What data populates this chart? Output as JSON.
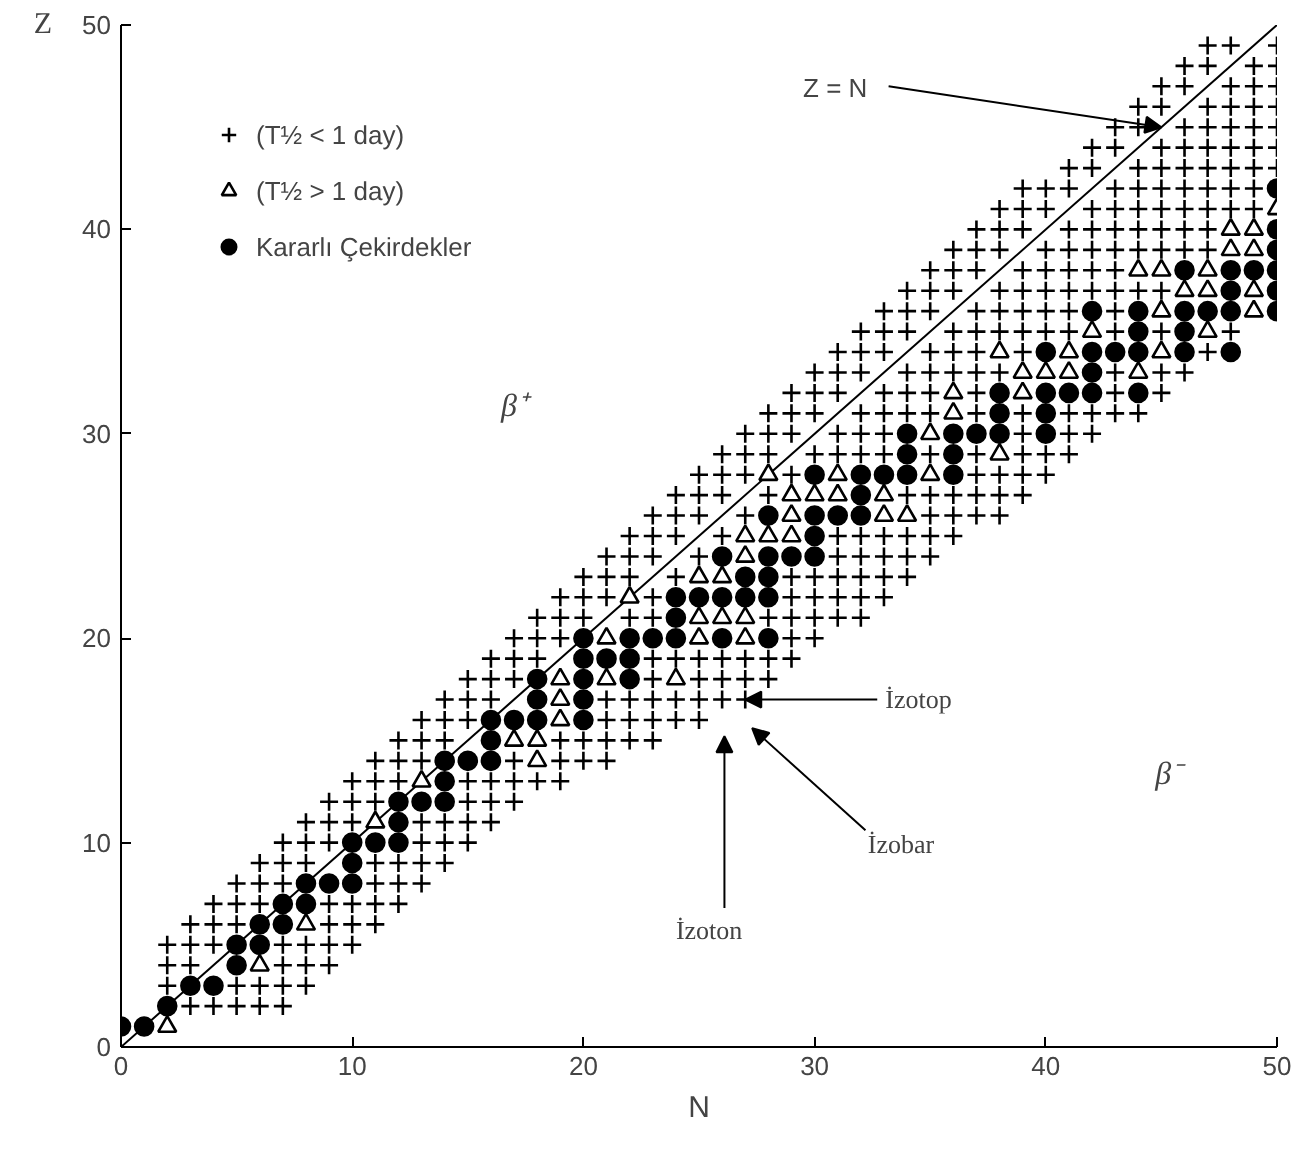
{
  "chart_data": {
    "type": "scatter",
    "xlabel": "N",
    "ylabel": "Z",
    "xlim": [
      0,
      50
    ],
    "ylim": [
      0,
      50
    ],
    "xticks": [
      0,
      10,
      20,
      30,
      40,
      50
    ],
    "yticks": [
      0,
      10,
      20,
      30,
      40,
      50
    ],
    "grid": false,
    "legend": "top left",
    "annotations": [
      {
        "text": "Z = N",
        "x": 45,
        "y": 45
      },
      "β⁺",
      "β⁻",
      {
        "text": "İzotop",
        "x": 27,
        "y": 17
      },
      "İzobar",
      "İzoton"
    ],
    "series": [
      {
        "type": "line",
        "color": "#000000",
        "x": [
          0,
          50
        ],
        "values": [
          0,
          50
        ]
      },
      {
        "marker": "cross",
        "name": "(T½ < 1 day)",
        "color": "#000000",
        "x": [
          3,
          4,
          5,
          6,
          7
        ],
        "values": [
          2,
          2,
          2,
          2,
          2
        ]
      },
      {
        "marker": "cross",
        "color": "#000000",
        "x": [
          2,
          5,
          6,
          7,
          8
        ],
        "values": [
          3,
          3,
          3,
          3,
          3
        ]
      },
      {
        "marker": "cross",
        "color": "#000000",
        "x": [
          2,
          3,
          7,
          8,
          9
        ],
        "values": [
          4,
          4,
          4,
          4,
          4
        ]
      },
      {
        "marker": "cross",
        "color": "#000000",
        "x": [
          2,
          3,
          4,
          7,
          8,
          9,
          10
        ],
        "values": [
          5,
          5,
          5,
          5,
          5,
          5,
          5
        ]
      },
      {
        "marker": "cross",
        "color": "#000000",
        "x": [
          3,
          4,
          5,
          9,
          10,
          11
        ],
        "values": [
          6,
          6,
          6,
          6,
          6,
          6
        ]
      },
      {
        "marker": "cross",
        "color": "#000000",
        "x": [
          4,
          5,
          6,
          9,
          10,
          11,
          12
        ],
        "values": [
          7,
          7,
          7,
          7,
          7,
          7,
          7
        ]
      },
      {
        "marker": "cross",
        "color": "#000000",
        "x": [
          5,
          6,
          7,
          11,
          12,
          13
        ],
        "values": [
          8,
          8,
          8,
          8,
          8,
          8
        ]
      },
      {
        "marker": "cross",
        "color": "#000000",
        "x": [
          6,
          7,
          8,
          11,
          12,
          13,
          14
        ],
        "values": [
          9,
          9,
          9,
          9,
          9,
          9,
          9
        ]
      },
      {
        "marker": "cross",
        "color": "#000000",
        "x": [
          7,
          8,
          9,
          13,
          14,
          15
        ],
        "values": [
          10,
          10,
          10,
          10,
          10,
          10
        ]
      },
      {
        "marker": "cross",
        "color": "#000000",
        "x": [
          8,
          9,
          10,
          13,
          14,
          15,
          16
        ],
        "values": [
          11,
          11,
          11,
          11,
          11,
          11,
          11
        ]
      },
      {
        "marker": "cross",
        "color": "#000000",
        "x": [
          9,
          10,
          11,
          15,
          16,
          17
        ],
        "values": [
          12,
          12,
          12,
          12,
          12,
          12
        ]
      },
      {
        "marker": "cross",
        "color": "#000000",
        "x": [
          10,
          11,
          12,
          15,
          16,
          17,
          18,
          19
        ],
        "values": [
          13,
          13,
          13,
          13,
          13,
          13,
          13,
          13
        ]
      },
      {
        "marker": "cross",
        "color": "#000000",
        "x": [
          11,
          12,
          13,
          17,
          19,
          20,
          21
        ],
        "values": [
          14,
          14,
          14,
          14,
          14,
          14,
          14
        ]
      },
      {
        "marker": "cross",
        "color": "#000000",
        "x": [
          12,
          13,
          14,
          19,
          20,
          21,
          22,
          23
        ],
        "values": [
          15,
          15,
          15,
          15,
          15,
          15,
          15,
          15
        ]
      },
      {
        "marker": "cross",
        "color": "#000000",
        "x": [
          13,
          14,
          15,
          21,
          22,
          23,
          24,
          25
        ],
        "values": [
          16,
          16,
          16,
          16,
          16,
          16,
          16,
          16
        ]
      },
      {
        "marker": "cross",
        "color": "#000000",
        "x": [
          14,
          15,
          16,
          21,
          22,
          23,
          24,
          25,
          26,
          27
        ],
        "values": [
          17,
          17,
          17,
          17,
          17,
          17,
          17,
          17,
          17,
          17
        ]
      },
      {
        "marker": "cross",
        "color": "#000000",
        "x": [
          15,
          16,
          17,
          23,
          25,
          26,
          27,
          28
        ],
        "values": [
          18,
          18,
          18,
          18,
          18,
          18,
          18,
          18
        ]
      },
      {
        "marker": "cross",
        "color": "#000000",
        "x": [
          16,
          17,
          18,
          23,
          24,
          25,
          26,
          27,
          28,
          29
        ],
        "values": [
          19,
          19,
          19,
          19,
          19,
          19,
          19,
          19,
          19,
          19
        ]
      },
      {
        "marker": "cross",
        "color": "#000000",
        "x": [
          17,
          18,
          19,
          29,
          30
        ],
        "values": [
          20,
          20,
          20,
          20,
          20
        ]
      },
      {
        "marker": "cross",
        "color": "#000000",
        "x": [
          18,
          19,
          20,
          22,
          23,
          28,
          29,
          30,
          31,
          32
        ],
        "values": [
          21,
          21,
          21,
          21,
          21,
          21,
          21,
          21,
          21,
          21
        ]
      },
      {
        "marker": "cross",
        "color": "#000000",
        "x": [
          19,
          20,
          21,
          23,
          29,
          30,
          31,
          32,
          33
        ],
        "values": [
          22,
          22,
          22,
          22,
          22,
          22,
          22,
          22,
          22
        ]
      },
      {
        "marker": "cross",
        "color": "#000000",
        "x": [
          20,
          21,
          22,
          24,
          29,
          30,
          31,
          32,
          33,
          34
        ],
        "values": [
          23,
          23,
          23,
          23,
          23,
          23,
          23,
          23,
          23,
          23
        ]
      },
      {
        "marker": "cross",
        "color": "#000000",
        "x": [
          21,
          22,
          23,
          25,
          31,
          32,
          33,
          34,
          35
        ],
        "values": [
          24,
          24,
          24,
          24,
          24,
          24,
          24,
          24,
          24
        ]
      },
      {
        "marker": "cross",
        "color": "#000000",
        "x": [
          22,
          23,
          24,
          26,
          31,
          32,
          33,
          34,
          35,
          36
        ],
        "values": [
          25,
          25,
          25,
          25,
          25,
          25,
          25,
          25,
          25,
          25
        ]
      },
      {
        "marker": "cross",
        "color": "#000000",
        "x": [
          23,
          24,
          25,
          27,
          35,
          36,
          37,
          38
        ],
        "values": [
          26,
          26,
          26,
          26,
          26,
          26,
          26,
          26
        ]
      },
      {
        "marker": "cross",
        "color": "#000000",
        "x": [
          24,
          25,
          26,
          28,
          34,
          35,
          36,
          37,
          38,
          39
        ],
        "values": [
          27,
          27,
          27,
          27,
          27,
          27,
          27,
          27,
          27,
          27
        ]
      },
      {
        "marker": "cross",
        "color": "#000000",
        "x": [
          25,
          26,
          27,
          29,
          37,
          38,
          39,
          40
        ],
        "values": [
          28,
          28,
          28,
          28,
          28,
          28,
          28,
          28
        ]
      },
      {
        "marker": "cross",
        "color": "#000000",
        "x": [
          26,
          27,
          28,
          30,
          31,
          32,
          33,
          35,
          37,
          39,
          40,
          41
        ],
        "values": [
          29,
          29,
          29,
          29,
          29,
          29,
          29,
          29,
          29,
          29,
          29,
          29
        ]
      },
      {
        "marker": "cross",
        "color": "#000000",
        "x": [
          27,
          28,
          29,
          31,
          32,
          33,
          39,
          41,
          42
        ],
        "values": [
          30,
          30,
          30,
          30,
          30,
          30,
          30,
          30,
          30
        ]
      },
      {
        "marker": "cross",
        "color": "#000000",
        "x": [
          28,
          29,
          30,
          32,
          33,
          34,
          35,
          37,
          39,
          41,
          42,
          43,
          44
        ],
        "values": [
          31,
          31,
          31,
          31,
          31,
          31,
          31,
          31,
          31,
          31,
          31,
          31,
          31
        ]
      },
      {
        "marker": "cross",
        "color": "#000000",
        "x": [
          29,
          30,
          31,
          33,
          34,
          35,
          37,
          43,
          45
        ],
        "values": [
          32,
          32,
          32,
          32,
          32,
          32,
          32,
          32,
          32
        ]
      },
      {
        "marker": "cross",
        "color": "#000000",
        "x": [
          30,
          31,
          32,
          34,
          35,
          36,
          37,
          38,
          43,
          45,
          46
        ],
        "values": [
          33,
          33,
          33,
          33,
          33,
          33,
          33,
          33,
          33,
          33,
          33
        ]
      },
      {
        "marker": "cross",
        "color": "#000000",
        "x": [
          31,
          32,
          33,
          35,
          36,
          37,
          39,
          47
        ],
        "values": [
          34,
          34,
          34,
          34,
          34,
          34,
          34,
          34
        ]
      },
      {
        "marker": "cross",
        "color": "#000000",
        "x": [
          32,
          33,
          34,
          36,
          37,
          38,
          39,
          40,
          41,
          43,
          45,
          48
        ],
        "values": [
          35,
          35,
          35,
          35,
          35,
          35,
          35,
          35,
          35,
          35,
          35,
          35
        ]
      },
      {
        "marker": "cross",
        "color": "#000000",
        "x": [
          33,
          34,
          35,
          37,
          38,
          39,
          40,
          41,
          43
        ],
        "values": [
          36,
          36,
          36,
          36,
          36,
          36,
          36,
          36,
          36
        ]
      },
      {
        "marker": "cross",
        "color": "#000000",
        "x": [
          34,
          35,
          36,
          38,
          39,
          40,
          41,
          42,
          43,
          44,
          45
        ],
        "values": [
          37,
          37,
          37,
          37,
          37,
          37,
          37,
          37,
          37,
          37,
          37
        ]
      },
      {
        "marker": "cross",
        "color": "#000000",
        "x": [
          35,
          36,
          37,
          39,
          40,
          41,
          42,
          43
        ],
        "values": [
          38,
          38,
          38,
          38,
          38,
          38,
          38,
          38
        ]
      },
      {
        "marker": "cross",
        "color": "#000000",
        "x": [
          36,
          37,
          38,
          40,
          41,
          42,
          43,
          44,
          45,
          46,
          47
        ],
        "values": [
          39,
          39,
          39,
          39,
          39,
          39,
          39,
          39,
          39,
          39,
          39
        ]
      },
      {
        "marker": "cross",
        "color": "#000000",
        "x": [
          37,
          38,
          39,
          41,
          42,
          43,
          44,
          45,
          46,
          47
        ],
        "values": [
          40,
          40,
          40,
          40,
          40,
          40,
          40,
          40,
          40,
          40
        ]
      },
      {
        "marker": "cross",
        "color": "#000000",
        "x": [
          38,
          39,
          40,
          42,
          43,
          44,
          45,
          46,
          47,
          48,
          49
        ],
        "values": [
          41,
          41,
          41,
          41,
          41,
          41,
          41,
          41,
          41,
          41,
          41
        ]
      },
      {
        "marker": "cross",
        "color": "#000000",
        "x": [
          39,
          40,
          41,
          43,
          44,
          45,
          46,
          47,
          48,
          49
        ],
        "values": [
          42,
          42,
          42,
          42,
          42,
          42,
          42,
          42,
          42,
          42
        ]
      },
      {
        "marker": "cross",
        "color": "#000000",
        "x": [
          41,
          42,
          44,
          45,
          46,
          47,
          48,
          49,
          50
        ],
        "values": [
          43,
          43,
          43,
          43,
          43,
          43,
          43,
          43,
          43
        ]
      },
      {
        "marker": "cross",
        "color": "#000000",
        "x": [
          42,
          43,
          45,
          46,
          47,
          48,
          49,
          50
        ],
        "values": [
          44,
          44,
          44,
          44,
          44,
          44,
          44,
          44
        ]
      },
      {
        "marker": "cross",
        "color": "#000000",
        "x": [
          43,
          44,
          46,
          47,
          48,
          49,
          50
        ],
        "values": [
          45,
          45,
          45,
          45,
          45,
          45,
          45
        ]
      },
      {
        "marker": "cross",
        "color": "#000000",
        "x": [
          44,
          45,
          47,
          48,
          49,
          50
        ],
        "values": [
          46,
          46,
          46,
          46,
          46,
          46
        ]
      },
      {
        "marker": "cross",
        "color": "#000000",
        "x": [
          45,
          46,
          48,
          49,
          50
        ],
        "values": [
          47,
          47,
          47,
          47,
          47
        ]
      },
      {
        "marker": "cross",
        "color": "#000000",
        "x": [
          46,
          47,
          49,
          50
        ],
        "values": [
          48,
          48,
          48,
          48
        ]
      },
      {
        "marker": "cross",
        "color": "#000000",
        "x": [
          47,
          48,
          50
        ],
        "values": [
          49,
          49,
          49
        ]
      },
      {
        "marker": "triangle",
        "name": "(T½ > 1 day)",
        "color": "#000000",
        "x": [
          2,
          6,
          8,
          11,
          13,
          18,
          17,
          18,
          19,
          19,
          19,
          21,
          24,
          21,
          25,
          27,
          25,
          26,
          27,
          22,
          25,
          26,
          27,
          27,
          28,
          29,
          29,
          33,
          34,
          29,
          30,
          31,
          33,
          28,
          31,
          35,
          38,
          35,
          36,
          36,
          39,
          39,
          40,
          41,
          44,
          38,
          41,
          45,
          42,
          47,
          45,
          49,
          46,
          47,
          49,
          44,
          45,
          47,
          48,
          49,
          48,
          49,
          50
        ],
        "values": [
          1,
          4,
          6,
          11,
          13,
          14,
          15,
          15,
          16,
          17,
          18,
          18,
          18,
          20,
          20,
          20,
          21,
          21,
          21,
          22,
          23,
          23,
          24,
          25,
          25,
          25,
          26,
          26,
          26,
          27,
          27,
          27,
          27,
          28,
          28,
          28,
          29,
          30,
          31,
          32,
          32,
          33,
          33,
          33,
          33,
          34,
          34,
          34,
          35,
          35,
          36,
          36,
          37,
          37,
          37,
          38,
          38,
          38,
          39,
          39,
          40,
          40,
          41
        ]
      },
      {
        "marker": "circle",
        "name": "Kararlı Çekirdekler",
        "color": "#000000",
        "x": [
          0,
          1,
          2,
          3,
          4,
          5,
          5,
          6,
          6,
          7,
          7,
          8,
          8,
          9,
          10,
          10,
          10,
          11,
          12,
          12,
          12,
          13,
          14,
          14,
          14,
          15,
          16,
          16,
          16,
          17,
          18,
          20,
          18,
          20,
          18,
          20,
          22,
          20,
          21,
          22,
          20,
          22,
          23,
          24,
          26,
          28,
          24,
          24,
          25,
          26,
          27,
          28,
          27,
          28,
          26,
          28,
          29,
          30,
          30,
          28,
          30,
          31,
          32,
          32,
          30,
          32,
          33,
          34,
          36,
          34,
          36,
          34,
          36,
          37,
          38,
          40,
          38,
          40,
          38,
          40,
          41,
          42,
          44,
          42,
          40,
          42,
          43,
          44,
          46,
          48,
          44,
          46,
          42,
          44,
          46,
          47,
          48,
          50,
          48,
          50,
          46,
          48,
          49,
          50,
          50,
          50,
          50
        ],
        "values": [
          1,
          1,
          2,
          3,
          3,
          4,
          5,
          5,
          6,
          6,
          7,
          7,
          8,
          8,
          8,
          9,
          10,
          10,
          10,
          11,
          12,
          12,
          12,
          13,
          14,
          14,
          14,
          15,
          16,
          16,
          16,
          16,
          17,
          17,
          18,
          18,
          18,
          19,
          19,
          19,
          20,
          20,
          20,
          20,
          20,
          20,
          21,
          22,
          22,
          22,
          22,
          22,
          23,
          23,
          24,
          24,
          24,
          24,
          25,
          26,
          26,
          26,
          26,
          27,
          28,
          28,
          28,
          28,
          28,
          29,
          29,
          30,
          30,
          30,
          30,
          30,
          31,
          31,
          32,
          32,
          32,
          32,
          32,
          33,
          34,
          34,
          34,
          34,
          34,
          34,
          35,
          35,
          36,
          36,
          36,
          36,
          36,
          36,
          37,
          37,
          38,
          38,
          38,
          38,
          39,
          40,
          42
        ]
      }
    ]
  }
}
